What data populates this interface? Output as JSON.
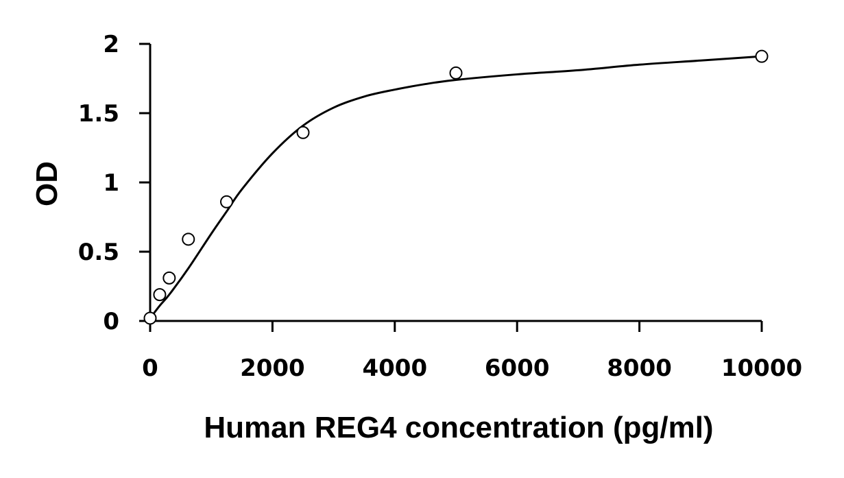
{
  "chart_data": {
    "type": "scatter",
    "title": "",
    "xlabel": "Human REG4 concentration (pg/ml)",
    "ylabel": "OD",
    "xlim": [
      0,
      10000
    ],
    "ylim": [
      0,
      2
    ],
    "x_ticks": [
      0,
      2000,
      4000,
      6000,
      8000,
      10000
    ],
    "x_tick_labels": [
      "0",
      "2000",
      "4000",
      "6000",
      "8000",
      "10000"
    ],
    "y_ticks": [
      0,
      0.5,
      1,
      1.5,
      2
    ],
    "y_tick_labels": [
      "0",
      "0.5",
      "1",
      "1.5",
      "2"
    ],
    "grid": false,
    "legend": "none",
    "series": [
      {
        "kind": "points",
        "marker": "open-circle",
        "x": [
          0,
          156,
          312,
          625,
          1250,
          2500,
          5000,
          10000
        ],
        "y": [
          0.02,
          0.19,
          0.31,
          0.59,
          0.86,
          1.36,
          1.79,
          1.91
        ]
      },
      {
        "kind": "fitted-curve",
        "x": [
          0,
          156,
          312,
          625,
          1000,
          1250,
          1500,
          2000,
          2500,
          3000,
          3500,
          4000,
          4500,
          5000,
          6000,
          7000,
          8000,
          9000,
          10000
        ],
        "y": [
          0.02,
          0.11,
          0.19,
          0.38,
          0.63,
          0.79,
          0.95,
          1.21,
          1.41,
          1.54,
          1.62,
          1.67,
          1.71,
          1.74,
          1.78,
          1.81,
          1.85,
          1.88,
          1.91
        ]
      }
    ],
    "colors": {
      "line": "#000000",
      "marker_stroke": "#000000",
      "marker_fill": "#ffffff"
    }
  }
}
